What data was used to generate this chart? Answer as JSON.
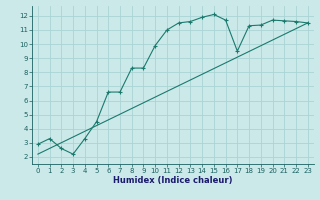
{
  "xlabel": "Humidex (Indice chaleur)",
  "bg_color": "#cce9e9",
  "grid_color": "#aad4d4",
  "line_color": "#1a7a6e",
  "xlim": [
    -0.5,
    23.5
  ],
  "ylim": [
    1.5,
    12.7
  ],
  "xticks": [
    0,
    1,
    2,
    3,
    4,
    5,
    6,
    7,
    8,
    9,
    10,
    11,
    12,
    13,
    14,
    15,
    16,
    17,
    18,
    19,
    20,
    21,
    22,
    23
  ],
  "yticks": [
    2,
    3,
    4,
    5,
    6,
    7,
    8,
    9,
    10,
    11,
    12
  ],
  "curve1_x": [
    0,
    1,
    2,
    3,
    4,
    5,
    6,
    7,
    8,
    9,
    10,
    11,
    12,
    13,
    14,
    15,
    16,
    17,
    18,
    19,
    20,
    21,
    22,
    23
  ],
  "curve1_y": [
    2.9,
    3.3,
    2.6,
    2.2,
    3.3,
    4.5,
    6.6,
    6.6,
    8.3,
    8.3,
    9.9,
    11.0,
    11.5,
    11.6,
    11.9,
    12.1,
    11.7,
    9.5,
    11.3,
    11.35,
    11.7,
    11.65,
    11.6,
    11.5
  ],
  "curve2_x": [
    0,
    23
  ],
  "curve2_y": [
    2.2,
    11.5
  ],
  "tick_fontsize": 5.0,
  "xlabel_fontsize": 6.0
}
